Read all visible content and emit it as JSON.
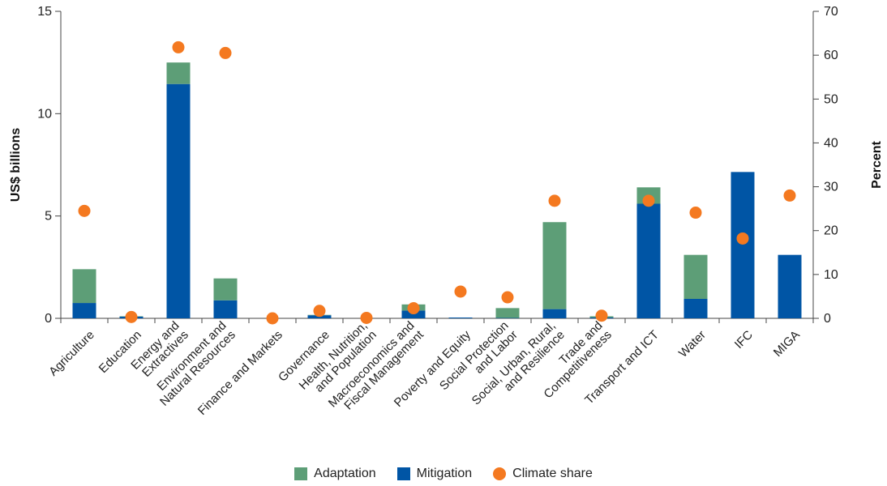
{
  "chart_data": {
    "type": "bar",
    "categories": [
      [
        "Agriculture"
      ],
      [
        "Education"
      ],
      [
        "Energy and",
        "Extractives"
      ],
      [
        "Environment and",
        "Natural Resources"
      ],
      [
        "Finance and Markets"
      ],
      [
        "Governance"
      ],
      [
        "Health, Nutrition,",
        "and Population"
      ],
      [
        "Macroeconomics and",
        "Fiscal Management"
      ],
      [
        "Poverty and Equity"
      ],
      [
        "Social Protection",
        "and Labor"
      ],
      [
        "Social, Urban, Rural,",
        "and Resilience"
      ],
      [
        "Trade and",
        "Competitiveness"
      ],
      [
        "Transport and ICT"
      ],
      [
        "Water"
      ],
      [
        "IFC"
      ],
      [
        "MIGA"
      ]
    ],
    "series": [
      {
        "name": "Mitigation",
        "axis": "left",
        "kind": "stacked-bar",
        "values": [
          0.75,
          0.08,
          11.45,
          0.88,
          0.0,
          0.15,
          0.0,
          0.38,
          0.04,
          0.02,
          0.45,
          0.04,
          5.6,
          0.95,
          7.15,
          3.1
        ]
      },
      {
        "name": "Adaptation",
        "axis": "left",
        "kind": "stacked-bar",
        "values": [
          1.65,
          0.02,
          1.05,
          1.07,
          0.0,
          0.02,
          0.0,
          0.3,
          0.0,
          0.48,
          4.25,
          0.06,
          0.8,
          2.15,
          0.0,
          0.0
        ]
      },
      {
        "name": "Climate share",
        "axis": "right",
        "kind": "point",
        "values": [
          24.5,
          0.3,
          61.8,
          60.5,
          0.0,
          1.7,
          0.1,
          2.3,
          6.1,
          4.8,
          26.8,
          0.6,
          26.8,
          24.1,
          18.2,
          28.0
        ]
      }
    ],
    "ylabel": "US$ billions",
    "ylim": [
      0,
      15
    ],
    "yticks": [
      "0",
      "5",
      "10",
      "15"
    ],
    "y2label": "Percent",
    "y2lim": [
      0,
      70
    ],
    "y2ticks": [
      "0",
      "10",
      "20",
      "30",
      "40",
      "50",
      "60",
      "70"
    ],
    "grid": false,
    "legend_position": "bottom-center",
    "colors": {
      "Adaptation": "#5d9e77",
      "Mitigation": "#0055a5",
      "Climate share": "#f47920"
    },
    "legend": [
      "Adaptation",
      "Mitigation",
      "Climate share"
    ]
  }
}
